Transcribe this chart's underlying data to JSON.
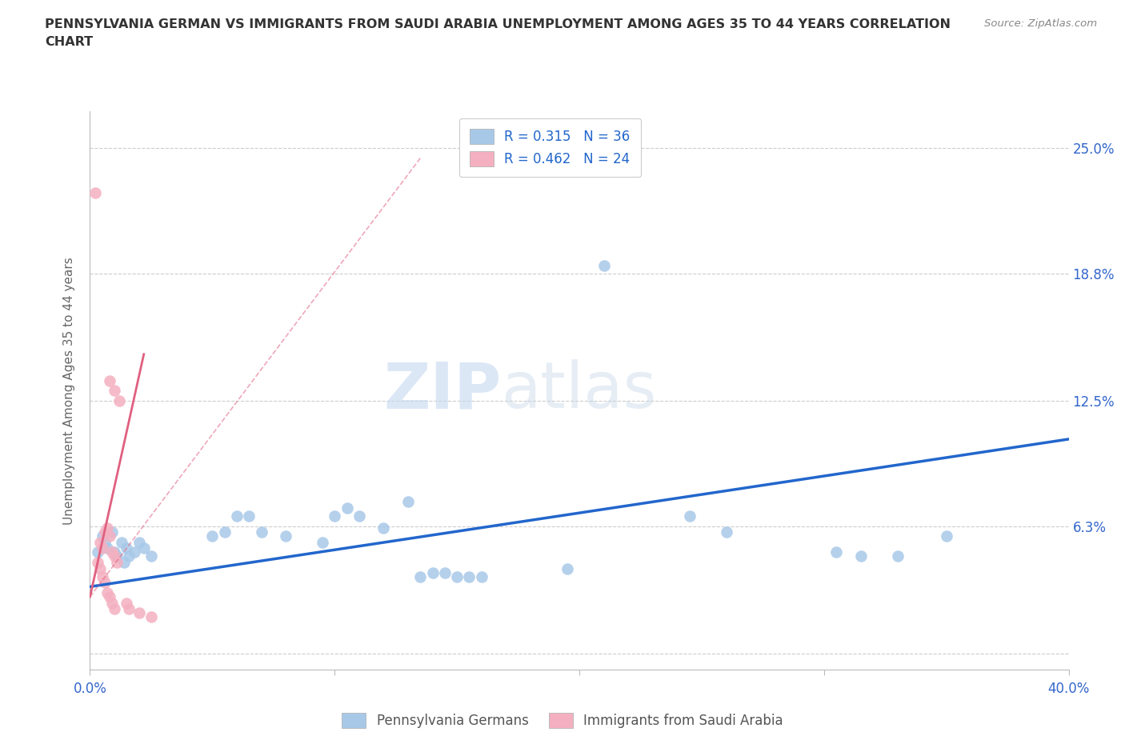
{
  "title_line1": "PENNSYLVANIA GERMAN VS IMMIGRANTS FROM SAUDI ARABIA UNEMPLOYMENT AMONG AGES 35 TO 44 YEARS CORRELATION",
  "title_line2": "CHART",
  "source": "Source: ZipAtlas.com",
  "ylabel": "Unemployment Among Ages 35 to 44 years",
  "xlim": [
    0,
    0.4
  ],
  "ylim": [
    -0.008,
    0.268
  ],
  "xtick_major": [
    0.0,
    0.4
  ],
  "xtick_minor": [
    0.1,
    0.2,
    0.3
  ],
  "xticklabels_major": [
    "0.0%",
    "40.0%"
  ],
  "ytick_values": [
    0.0,
    0.063,
    0.125,
    0.188,
    0.25
  ],
  "ytick_labels": [
    "",
    "6.3%",
    "12.5%",
    "18.8%",
    "25.0%"
  ],
  "watermark_zip": "ZIP",
  "watermark_atlas": "atlas",
  "blue_color": "#a8c8e8",
  "blue_line_color": "#2266cc",
  "pink_color": "#f4b0c0",
  "pink_line_color": "#e06080",
  "blue_points": [
    [
      0.003,
      0.05
    ],
    [
      0.005,
      0.058
    ],
    [
      0.006,
      0.055
    ],
    [
      0.007,
      0.052
    ],
    [
      0.009,
      0.06
    ],
    [
      0.01,
      0.05
    ],
    [
      0.011,
      0.048
    ],
    [
      0.013,
      0.055
    ],
    [
      0.014,
      0.045
    ],
    [
      0.015,
      0.052
    ],
    [
      0.016,
      0.048
    ],
    [
      0.018,
      0.05
    ],
    [
      0.02,
      0.055
    ],
    [
      0.022,
      0.052
    ],
    [
      0.025,
      0.048
    ],
    [
      0.05,
      0.058
    ],
    [
      0.055,
      0.06
    ],
    [
      0.06,
      0.068
    ],
    [
      0.065,
      0.068
    ],
    [
      0.07,
      0.06
    ],
    [
      0.08,
      0.058
    ],
    [
      0.095,
      0.055
    ],
    [
      0.1,
      0.068
    ],
    [
      0.105,
      0.072
    ],
    [
      0.11,
      0.068
    ],
    [
      0.12,
      0.062
    ],
    [
      0.13,
      0.075
    ],
    [
      0.135,
      0.038
    ],
    [
      0.14,
      0.04
    ],
    [
      0.145,
      0.04
    ],
    [
      0.15,
      0.038
    ],
    [
      0.155,
      0.038
    ],
    [
      0.16,
      0.038
    ],
    [
      0.195,
      0.042
    ],
    [
      0.21,
      0.192
    ],
    [
      0.245,
      0.068
    ],
    [
      0.26,
      0.06
    ],
    [
      0.305,
      0.05
    ],
    [
      0.315,
      0.048
    ],
    [
      0.33,
      0.048
    ],
    [
      0.35,
      0.058
    ]
  ],
  "pink_points": [
    [
      0.002,
      0.228
    ],
    [
      0.008,
      0.135
    ],
    [
      0.01,
      0.13
    ],
    [
      0.012,
      0.125
    ],
    [
      0.004,
      0.055
    ],
    [
      0.005,
      0.052
    ],
    [
      0.006,
      0.06
    ],
    [
      0.007,
      0.062
    ],
    [
      0.008,
      0.058
    ],
    [
      0.009,
      0.05
    ],
    [
      0.01,
      0.048
    ],
    [
      0.011,
      0.045
    ],
    [
      0.003,
      0.045
    ],
    [
      0.004,
      0.042
    ],
    [
      0.005,
      0.038
    ],
    [
      0.006,
      0.035
    ],
    [
      0.007,
      0.03
    ],
    [
      0.008,
      0.028
    ],
    [
      0.009,
      0.025
    ],
    [
      0.01,
      0.022
    ],
    [
      0.015,
      0.025
    ],
    [
      0.016,
      0.022
    ],
    [
      0.02,
      0.02
    ],
    [
      0.025,
      0.018
    ]
  ],
  "blue_line_x": [
    0.0,
    0.4
  ],
  "blue_line_y": [
    0.033,
    0.106
  ],
  "pink_solid_line_x": [
    0.0,
    0.022
  ],
  "pink_solid_line_y": [
    0.028,
    0.148
  ],
  "pink_dash_line_x": [
    0.0,
    0.135
  ],
  "pink_dash_line_y": [
    0.028,
    0.245
  ]
}
